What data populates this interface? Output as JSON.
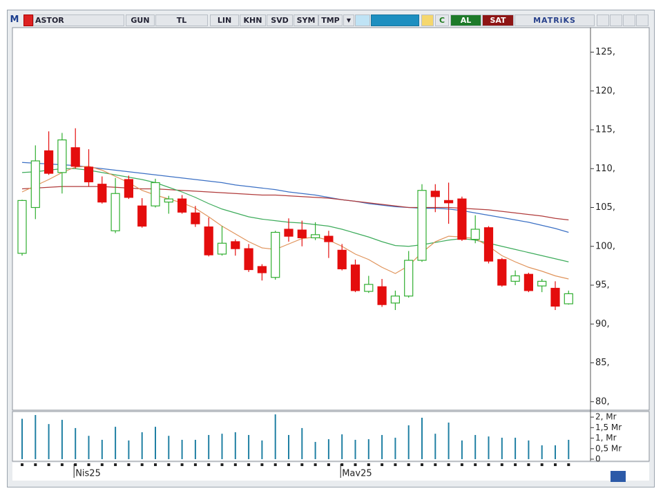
{
  "toolbar": {
    "items": [
      "M",
      "ASTOR",
      "GUN",
      "TL",
      "LIN",
      "KHN",
      "SVD",
      "SYM",
      "TMP",
      "C",
      "AL",
      "SAT",
      "MATRiKS"
    ]
  },
  "chart_data": [
    {
      "type": "candlestick",
      "open": [
        99.1,
        105,
        112.3,
        109.5,
        112.7,
        110.2,
        108,
        102,
        108.6,
        105.2,
        105.2,
        105.7,
        106.1,
        104.3,
        102.5,
        99,
        100.6,
        99.7,
        97.4,
        96,
        102.2,
        102.1,
        101.1,
        101.3,
        99.5,
        97.6,
        94.2,
        94.8,
        92.7,
        93.6,
        98.2,
        107.1,
        105.9,
        106.1,
        100.9,
        102.4,
        98.3,
        95.5,
        96.4,
        94.9,
        94.6,
        92.6
      ],
      "high": [
        106,
        113,
        114.8,
        114.6,
        115.2,
        112.5,
        109,
        108.8,
        109.1,
        106.2,
        108.7,
        106.5,
        106.6,
        105.2,
        103.7,
        102.6,
        100.9,
        100.3,
        97.7,
        102,
        103.6,
        103.3,
        103.1,
        102,
        100.3,
        98.3,
        96.2,
        95.8,
        94.3,
        99.4,
        108,
        108,
        108.2,
        106.4,
        104,
        102.6,
        98.5,
        96.9,
        96.6,
        95.8,
        95.5,
        94.3
      ],
      "low": [
        98.8,
        103.5,
        109.2,
        106.8,
        110,
        107.7,
        105.5,
        101.7,
        106.1,
        102.4,
        105,
        104.2,
        104.2,
        102.5,
        98.7,
        98.8,
        98.8,
        96.7,
        95.6,
        95.7,
        100.6,
        100,
        100.8,
        98.5,
        96.9,
        94.1,
        94,
        92.2,
        91.8,
        93.4,
        98,
        104.4,
        102.9,
        100.7,
        100.4,
        97.8,
        94.8,
        95,
        94.1,
        94.1,
        91.8,
        92.5
      ],
      "close": [
        105.9,
        111,
        109.4,
        113.7,
        110.3,
        108.3,
        105.7,
        106.8,
        106.3,
        102.6,
        108.2,
        106.1,
        104.4,
        102.9,
        98.9,
        100.4,
        99.7,
        97,
        96.6,
        101.8,
        101.3,
        101.1,
        101.5,
        100.6,
        97.1,
        94.3,
        95.1,
        92.5,
        93.6,
        98.2,
        107.2,
        106.4,
        105.6,
        100.9,
        102.2,
        98.1,
        95,
        96.2,
        94.3,
        95.5,
        92.3,
        93.9
      ],
      "up_color": "#2fae2f",
      "down_color": "#e40d0d",
      "series": [
        {
          "color": "#3a6fc4",
          "values": [
            110.8,
            110.7,
            110.6,
            110.5,
            110.4,
            110.2,
            110,
            109.8,
            109.6,
            109.4,
            109.2,
            109,
            108.8,
            108.6,
            108.4,
            108.2,
            107.9,
            107.7,
            107.5,
            107.3,
            107,
            106.8,
            106.6,
            106.3,
            106,
            105.8,
            105.5,
            105.3,
            105.1,
            105,
            104.9,
            104.9,
            104.8,
            104.6,
            104.3,
            104,
            103.7,
            103.4,
            103.1,
            102.7,
            102.3,
            101.8
          ]
        },
        {
          "color": "#b03a3a",
          "values": [
            107.4,
            107.5,
            107.6,
            107.7,
            107.7,
            107.7,
            107.7,
            107.6,
            107.5,
            107.4,
            107.4,
            107.3,
            107.2,
            107.1,
            107,
            106.9,
            106.8,
            106.7,
            106.6,
            106.6,
            106.5,
            106.4,
            106.3,
            106.2,
            106,
            105.8,
            105.6,
            105.4,
            105.2,
            105,
            105,
            105,
            105,
            104.9,
            104.8,
            104.7,
            104.5,
            104.3,
            104.1,
            103.9,
            103.6,
            103.4
          ]
        },
        {
          "color": "#3cab5a",
          "values": [
            109.5,
            109.6,
            109.8,
            110,
            110,
            109.8,
            109.5,
            109.2,
            108.9,
            108.6,
            108.2,
            107.6,
            107,
            106.3,
            105.5,
            104.8,
            104.3,
            103.8,
            103.5,
            103.3,
            103.1,
            103,
            102.8,
            102.6,
            102.2,
            101.7,
            101.2,
            100.6,
            100.1,
            100,
            100.2,
            100.5,
            100.8,
            101,
            100.8,
            100.4,
            100,
            99.6,
            99.2,
            98.8,
            98.4,
            98
          ]
        },
        {
          "color": "#e0935a",
          "values": [
            107,
            107.8,
            108.6,
            109.5,
            110.2,
            110.3,
            109.8,
            109,
            108.2,
            107.2,
            106.6,
            106.1,
            105.6,
            104.9,
            103.8,
            102.6,
            101.6,
            100.6,
            99.8,
            99.6,
            100.3,
            101,
            101.2,
            100.8,
            100,
            99,
            98.3,
            97.3,
            96.5,
            97.5,
            99.2,
            100.6,
            101.3,
            101.2,
            101,
            100,
            98.8,
            98,
            97.3,
            96.8,
            96.2,
            95.8
          ]
        }
      ],
      "ylim": [
        79,
        127.8
      ],
      "yticks": [
        {
          "value": 125,
          "label": "125,"
        },
        {
          "value": 120,
          "label": "120,"
        },
        {
          "value": 115,
          "label": "115,"
        },
        {
          "value": 110,
          "label": "110,"
        },
        {
          "value": 105,
          "label": "105,"
        },
        {
          "value": 100,
          "label": "100,"
        },
        {
          "value": 95,
          "label": "95,"
        },
        {
          "value": 90,
          "label": "90,"
        },
        {
          "value": 85,
          "label": "85,"
        },
        {
          "value": 80,
          "label": "80,"
        }
      ]
    },
    {
      "type": "bar",
      "categories": [
        null,
        null,
        null,
        null,
        "Nis25",
        null,
        null,
        null,
        null,
        null,
        null,
        null,
        null,
        null,
        null,
        null,
        null,
        null,
        null,
        null,
        null,
        null,
        null,
        null,
        "Mav25",
        null,
        null,
        null,
        null,
        null,
        null,
        null,
        null,
        null,
        null,
        null,
        null,
        null,
        null,
        null,
        null,
        null
      ],
      "values": [
        1.92,
        2.1,
        1.67,
        1.87,
        1.48,
        1.11,
        0.92,
        1.54,
        0.89,
        1.28,
        1.54,
        1.11,
        0.92,
        0.92,
        1.15,
        1.21,
        1.28,
        1.15,
        0.89,
        2.13,
        1.15,
        1.48,
        0.82,
        0.95,
        1.18,
        0.92,
        0.95,
        1.15,
        1.02,
        1.61,
        1.97,
        1.21,
        1.74,
        0.89,
        1.15,
        1.08,
        1.02,
        1.02,
        0.89,
        0.66,
        0.66,
        0.92
      ],
      "color": "#1f7fa3",
      "ylim": [
        0,
        2.2
      ],
      "yticks": [
        {
          "value": 2,
          "label": "2, Mr"
        },
        {
          "value": 1.5,
          "label": "1,5 Mr"
        },
        {
          "value": 1,
          "label": "1, Mr"
        },
        {
          "value": 0.5,
          "label": "0,5 Mr"
        },
        {
          "value": 0,
          "label": "0"
        }
      ]
    }
  ]
}
